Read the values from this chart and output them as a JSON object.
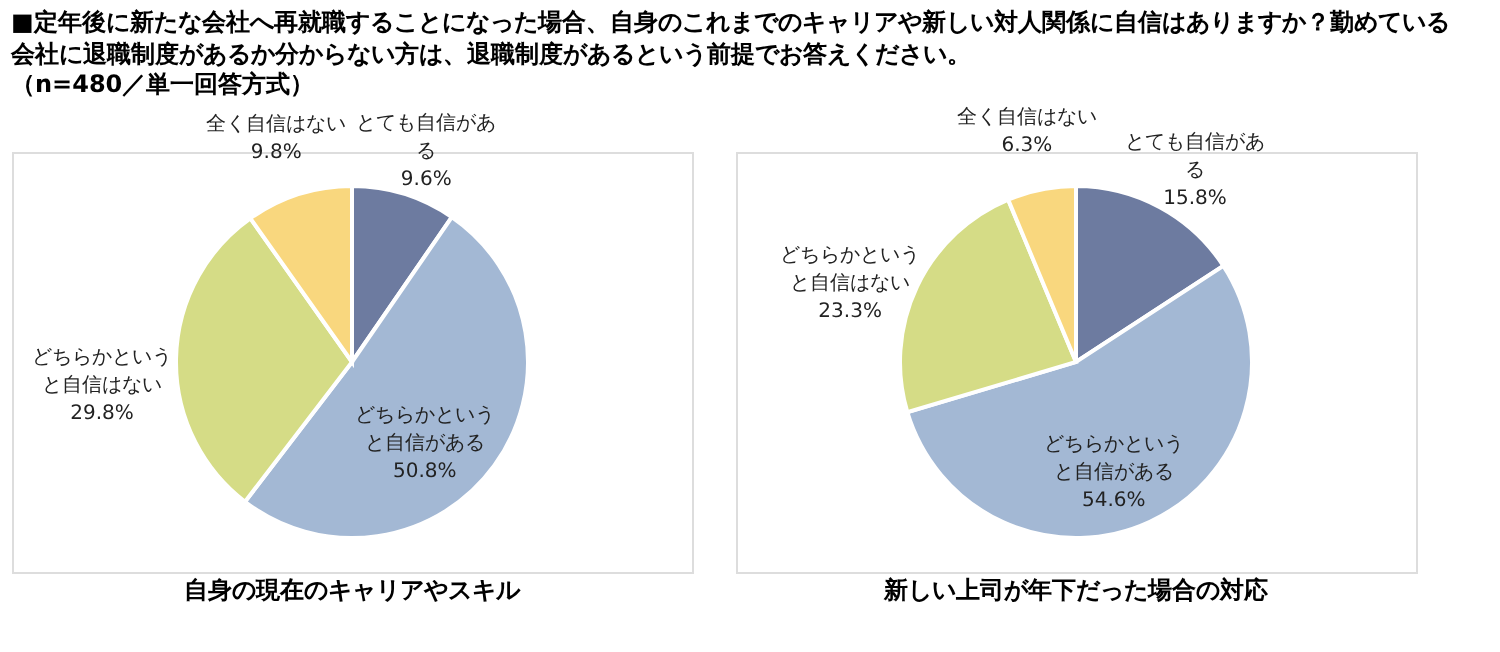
{
  "chart_data": [
    {
      "type": "pie",
      "title": "■定年後に新たな会社へ再就職することになった場合、自身のこれまでのキャリアや新しい対人関係に自信はありますか？勤めている会社に退職制度があるか分からない方は、退職制度があるという前提でお答えください。",
      "subtitle": "（n=480／単一回答方式）",
      "xlabel": "自身の現在のキャリアやスキル",
      "categories": [
        "とても自信がある",
        "どちらかというと自信がある",
        "どちらかというと自信はない",
        "全く自信はない"
      ],
      "values": [
        9.6,
        50.8,
        29.8,
        9.8
      ],
      "value_labels": [
        "9.6%",
        "50.8%",
        "29.8%",
        "9.8%"
      ],
      "colors": [
        "#6d7ba0",
        "#a3b8d4",
        "#d5dc86",
        "#f9d77e"
      ],
      "legend": false
    },
    {
      "type": "pie",
      "xlabel": "新しい上司が年下だった場合の対応",
      "categories": [
        "とても自信がある",
        "どちらかというと自信がある",
        "どちらかというと自信はない",
        "全く自信はない"
      ],
      "values": [
        15.8,
        54.6,
        23.3,
        6.3
      ],
      "value_labels": [
        "15.8%",
        "54.6%",
        "23.3%",
        "6.3%"
      ],
      "colors": [
        "#6d7ba0",
        "#a3b8d4",
        "#d5dc86",
        "#f9d77e"
      ],
      "legend": false
    }
  ]
}
